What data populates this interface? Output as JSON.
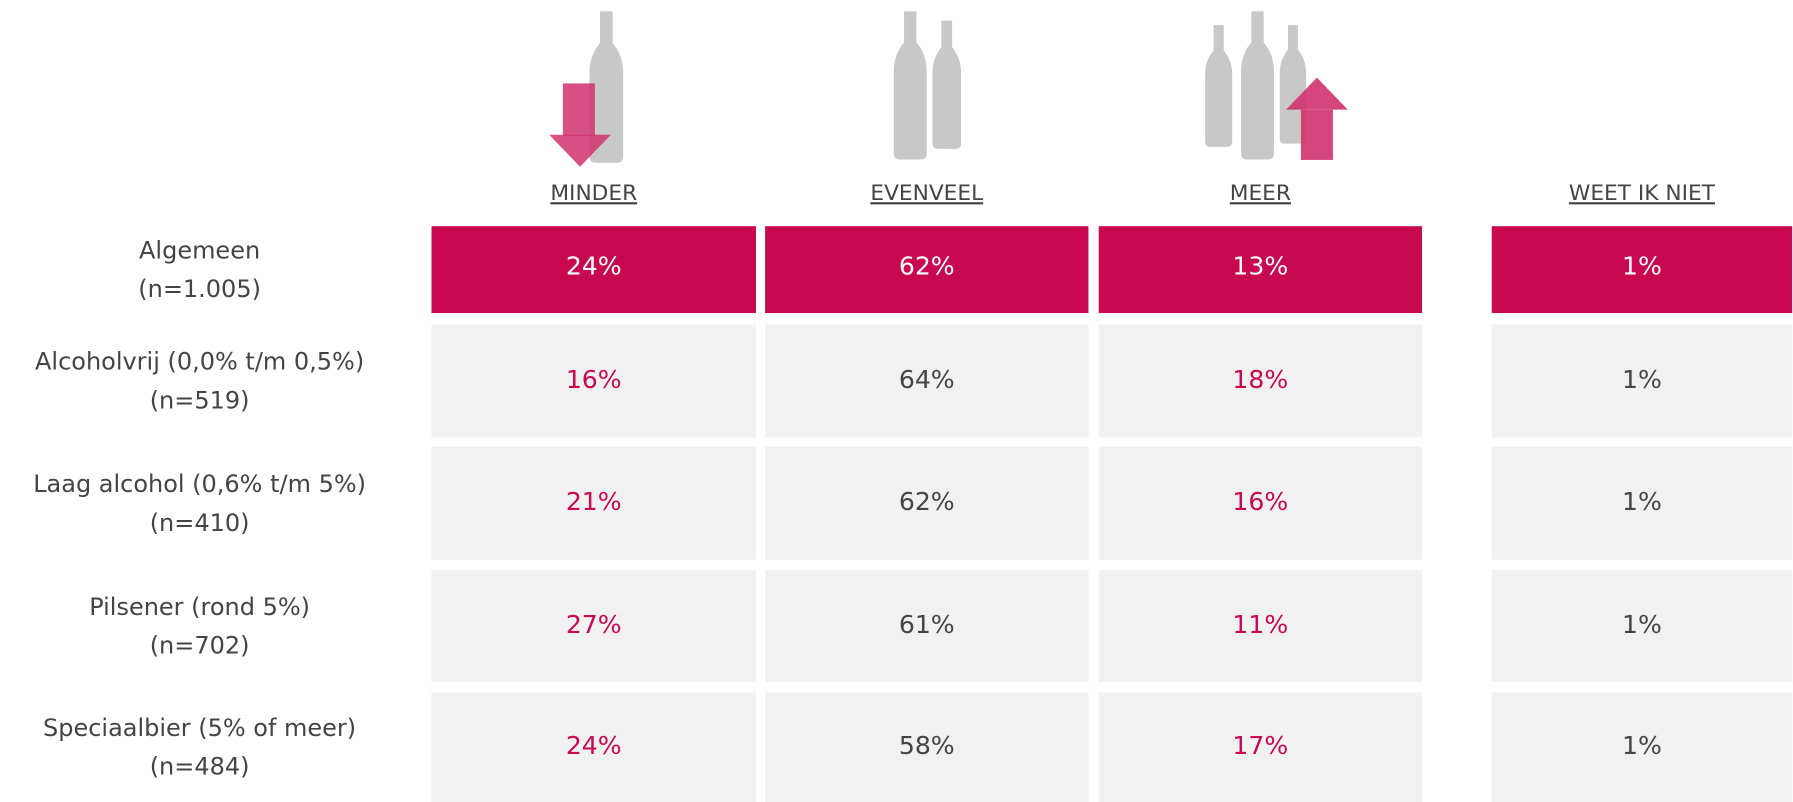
{
  "table": {
    "columns": [
      "MINDER",
      "EVENVEEL",
      "MEER",
      "WEET IK NIET"
    ],
    "rows": [
      {
        "label": "Algemeen",
        "n": "(n=1.005)",
        "values": [
          "24%",
          "62%",
          "13%",
          "1%"
        ]
      },
      {
        "label": "Alcoholvrij (0,0% t/m 0,5%)",
        "n": "(n=519)",
        "values": [
          "16%",
          "64%",
          "18%",
          "1%"
        ]
      },
      {
        "label": "Laag alcohol (0,6% t/m 5%)",
        "n": "(n=410)",
        "values": [
          "21%",
          "62%",
          "16%",
          "1%"
        ]
      },
      {
        "label": "Pilsener (rond 5%)",
        "n": "(n=702)",
        "values": [
          "27%",
          "61%",
          "11%",
          "1%"
        ]
      },
      {
        "label": "Speciaalbier (5% of meer)",
        "n": "(n=484)",
        "values": [
          "24%",
          "58%",
          "17%",
          "1%"
        ]
      }
    ]
  }
}
